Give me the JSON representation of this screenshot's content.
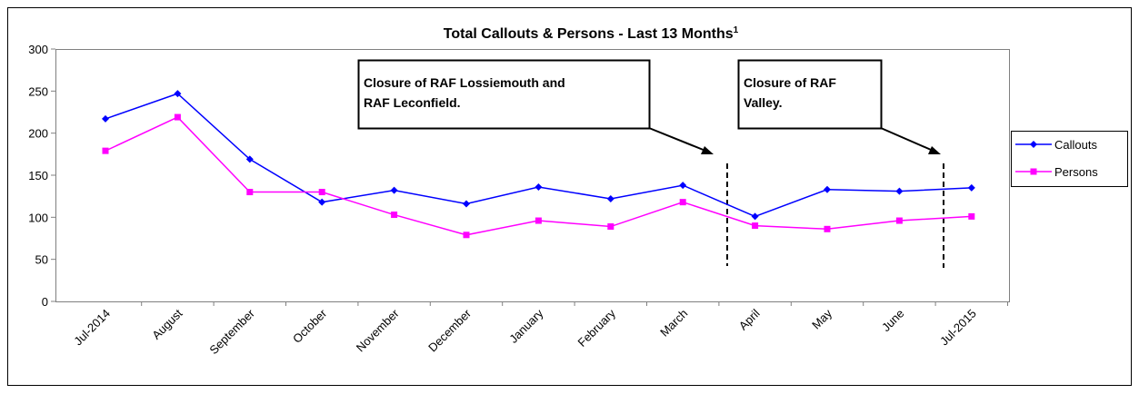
{
  "chart_data": {
    "type": "line",
    "title": "Total Callouts & Persons - Last 13 Months",
    "title_superscript": "1",
    "categories": [
      "Jul-2014",
      "August",
      "September",
      "October",
      "November",
      "December",
      "January",
      "February",
      "March",
      "April",
      "May",
      "June",
      "Jul-2015"
    ],
    "series": [
      {
        "name": "Callouts",
        "color": "#0000ff",
        "marker": "diamond",
        "values": [
          217,
          247,
          169,
          118,
          132,
          116,
          136,
          122,
          138,
          101,
          133,
          131,
          135
        ]
      },
      {
        "name": "Persons",
        "color": "#ff00ff",
        "marker": "square",
        "values": [
          179,
          219,
          130,
          130,
          103,
          79,
          96,
          89,
          118,
          90,
          86,
          96,
          101
        ]
      }
    ],
    "ylim": [
      0,
      300
    ],
    "yticks": [
      0,
      50,
      100,
      150,
      200,
      250,
      300
    ],
    "grid": false,
    "legend": "right",
    "annotations": [
      {
        "lines": [
          "Closure of RAF Lossiemouth and",
          "RAF Leconfield."
        ]
      },
      {
        "lines": [
          "Closure of RAF",
          "Valley."
        ]
      }
    ]
  }
}
